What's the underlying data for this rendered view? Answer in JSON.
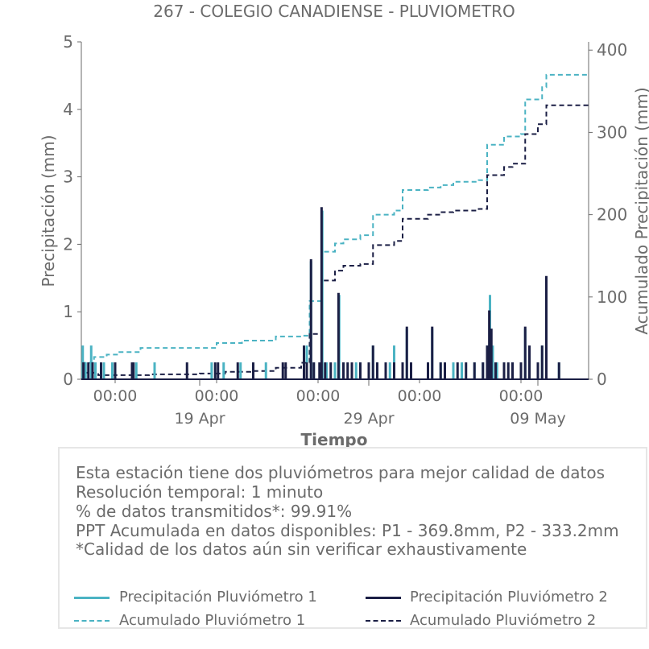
{
  "chart_data": {
    "type": "line",
    "title": "267 - COLEGIO CANADIENSE - PLUVIOMETRO",
    "xlabel": "Tiempo",
    "ylabel": "Precipitación (mm)",
    "ylabel_right": "Acumulado Precipitación (mm)",
    "ylim": [
      0,
      5
    ],
    "ylim_right": [
      0,
      410
    ],
    "yticks": [
      "0",
      "1",
      "2",
      "3",
      "4",
      "5"
    ],
    "yticks_right": [
      "0",
      "100",
      "200",
      "300",
      "400"
    ],
    "xlim": [
      "2025-04-12T00:00",
      "2025-05-12T00:00"
    ],
    "xticks": [
      {
        "t": "2025-04-14T00:00",
        "label": "00:00"
      },
      {
        "t": "2025-04-20T00:00",
        "label": "00:00"
      },
      {
        "t": "2025-04-26T00:00",
        "label": "00:00"
      },
      {
        "t": "2025-05-02T00:00",
        "label": "00:00"
      },
      {
        "t": "2025-05-08T00:00",
        "label": "00:00"
      }
    ],
    "xticks_major": [
      {
        "t": "2025-04-19T00:00",
        "label": "19 Apr"
      },
      {
        "t": "2025-04-29T00:00",
        "label": "29 Apr"
      },
      {
        "t": "2025-05-09T00:00",
        "label": "09 May"
      }
    ],
    "grid": false,
    "colors": {
      "p1": "#4bb3c3",
      "p2": "#1b1f45"
    },
    "series": [
      {
        "name": "Precipitación Pluviómetro 1",
        "axis": "left",
        "style": "spikes",
        "points": [
          [
            "2025-04-12T02:00",
            0.5
          ],
          [
            "2025-04-12T06:00",
            0.25
          ],
          [
            "2025-04-12T14:00",
            0.5
          ],
          [
            "2025-04-12T20:00",
            0.25
          ],
          [
            "2025-04-13T08:00",
            0.25
          ],
          [
            "2025-04-13T20:00",
            0.25
          ],
          [
            "2025-04-15T06:00",
            0.25
          ],
          [
            "2025-04-16T08:00",
            0.25
          ],
          [
            "2025-04-19T17:00",
            0.25
          ],
          [
            "2025-04-20T10:00",
            0.25
          ],
          [
            "2025-04-21T10:00",
            0.25
          ],
          [
            "2025-04-22T22:00",
            0.25
          ],
          [
            "2025-04-25T08:00",
            0.5
          ],
          [
            "2025-04-25T14:00",
            1.75
          ],
          [
            "2025-04-25T18:00",
            0.25
          ],
          [
            "2025-04-26T06:00",
            2.5
          ],
          [
            "2025-04-26T12:00",
            0.25
          ],
          [
            "2025-04-27T00:00",
            0.25
          ],
          [
            "2025-04-27T06:00",
            1.25
          ],
          [
            "2025-04-27T12:00",
            0.25
          ],
          [
            "2025-04-28T06:00",
            0.25
          ],
          [
            "2025-04-28T12:00",
            0.25
          ],
          [
            "2025-04-29T06:00",
            0.5
          ],
          [
            "2025-04-29T12:00",
            0.25
          ],
          [
            "2025-04-30T06:00",
            0.25
          ],
          [
            "2025-04-30T12:00",
            0.5
          ],
          [
            "2025-05-01T00:00",
            0.25
          ],
          [
            "2025-05-01T06:00",
            0.75
          ],
          [
            "2025-05-02T12:00",
            0.25
          ],
          [
            "2025-05-02T18:00",
            0.75
          ],
          [
            "2025-05-03T06:00",
            0.25
          ],
          [
            "2025-05-04T00:00",
            0.25
          ],
          [
            "2025-05-04T12:00",
            0.25
          ],
          [
            "2025-05-05T06:00",
            0.25
          ],
          [
            "2025-05-05T18:00",
            0.25
          ],
          [
            "2025-05-06T00:00",
            0.5
          ],
          [
            "2025-05-06T04:00",
            1.25
          ],
          [
            "2025-05-06T08:00",
            0.5
          ],
          [
            "2025-05-06T14:00",
            0.25
          ],
          [
            "2025-05-07T00:00",
            0.25
          ],
          [
            "2025-05-07T12:00",
            0.25
          ],
          [
            "2025-05-08T06:00",
            0.75
          ],
          [
            "2025-05-08T12:00",
            0.25
          ],
          [
            "2025-05-09T06:00",
            0.5
          ],
          [
            "2025-05-09T12:00",
            1.5
          ],
          [
            "2025-05-10T06:00",
            0.25
          ]
        ]
      },
      {
        "name": "Precipitación Pluviómetro 2",
        "axis": "left",
        "style": "spikes",
        "points": [
          [
            "2025-04-12T03:00",
            0.25
          ],
          [
            "2025-04-12T10:00",
            0.25
          ],
          [
            "2025-04-12T16:00",
            0.25
          ],
          [
            "2025-04-13T04:00",
            0.25
          ],
          [
            "2025-04-14T00:00",
            0.25
          ],
          [
            "2025-04-15T00:00",
            0.25
          ],
          [
            "2025-04-15T02:00",
            0.25
          ],
          [
            "2025-04-18T06:00",
            0.25
          ],
          [
            "2025-04-19T22:00",
            0.25
          ],
          [
            "2025-04-20T02:00",
            0.25
          ],
          [
            "2025-04-21T06:00",
            0.25
          ],
          [
            "2025-04-22T04:00",
            0.25
          ],
          [
            "2025-04-23T22:00",
            0.25
          ],
          [
            "2025-04-24T02:00",
            0.25
          ],
          [
            "2025-04-25T04:00",
            0.5
          ],
          [
            "2025-04-25T08:00",
            0.25
          ],
          [
            "2025-04-25T14:00",
            1.78
          ],
          [
            "2025-04-25T18:00",
            0.25
          ],
          [
            "2025-04-26T02:00",
            0.25
          ],
          [
            "2025-04-26T05:00",
            2.55
          ],
          [
            "2025-04-26T10:00",
            0.25
          ],
          [
            "2025-04-26T18:00",
            0.25
          ],
          [
            "2025-04-27T05:00",
            1.28
          ],
          [
            "2025-04-27T12:00",
            0.25
          ],
          [
            "2025-04-27T18:00",
            0.25
          ],
          [
            "2025-04-28T00:00",
            0.25
          ],
          [
            "2025-04-28T12:00",
            0.25
          ],
          [
            "2025-04-29T00:00",
            0.25
          ],
          [
            "2025-04-29T06:00",
            0.5
          ],
          [
            "2025-04-29T12:00",
            0.25
          ],
          [
            "2025-04-30T00:00",
            0.25
          ],
          [
            "2025-04-30T12:00",
            0.25
          ],
          [
            "2025-05-01T00:00",
            0.25
          ],
          [
            "2025-05-01T06:00",
            0.78
          ],
          [
            "2025-05-01T12:00",
            0.25
          ],
          [
            "2025-05-02T12:00",
            0.25
          ],
          [
            "2025-05-02T18:00",
            0.78
          ],
          [
            "2025-05-03T06:00",
            0.25
          ],
          [
            "2025-05-03T12:00",
            0.25
          ],
          [
            "2025-05-04T06:00",
            0.25
          ],
          [
            "2025-05-04T18:00",
            0.25
          ],
          [
            "2025-05-05T06:00",
            0.25
          ],
          [
            "2025-05-05T18:00",
            0.25
          ],
          [
            "2025-05-06T00:00",
            0.5
          ],
          [
            "2025-05-06T03:00",
            1.02
          ],
          [
            "2025-05-06T06:00",
            0.75
          ],
          [
            "2025-05-06T12:00",
            0.25
          ],
          [
            "2025-05-07T00:00",
            0.25
          ],
          [
            "2025-05-07T06:00",
            0.25
          ],
          [
            "2025-05-07T12:00",
            0.25
          ],
          [
            "2025-05-08T00:00",
            0.25
          ],
          [
            "2025-05-08T06:00",
            0.78
          ],
          [
            "2025-05-08T12:00",
            0.5
          ],
          [
            "2025-05-09T00:00",
            0.25
          ],
          [
            "2025-05-09T06:00",
            0.5
          ],
          [
            "2025-05-09T12:00",
            1.53
          ],
          [
            "2025-05-10T06:00",
            0.25
          ]
        ]
      },
      {
        "name": "Acumulado Pluviómetro 1",
        "axis": "right",
        "style": "dashed-step",
        "points": [
          [
            "2025-04-12T00:00",
            0
          ],
          [
            "2025-04-12T03:00",
            20
          ],
          [
            "2025-04-12T18:00",
            27
          ],
          [
            "2025-04-13T12:00",
            30
          ],
          [
            "2025-04-14T06:00",
            33
          ],
          [
            "2025-04-15T12:00",
            38
          ],
          [
            "2025-04-19T00:00",
            38
          ],
          [
            "2025-04-20T00:00",
            44
          ],
          [
            "2025-04-21T12:00",
            47
          ],
          [
            "2025-04-23T12:00",
            52
          ],
          [
            "2025-04-25T00:00",
            53
          ],
          [
            "2025-04-25T12:00",
            95
          ],
          [
            "2025-04-26T06:00",
            155
          ],
          [
            "2025-04-27T00:00",
            165
          ],
          [
            "2025-04-27T12:00",
            170
          ],
          [
            "2025-04-28T12:00",
            175
          ],
          [
            "2025-04-29T06:00",
            200
          ],
          [
            "2025-04-30T12:00",
            205
          ],
          [
            "2025-05-01T00:00",
            230
          ],
          [
            "2025-05-02T12:00",
            233
          ],
          [
            "2025-05-03T06:00",
            236
          ],
          [
            "2025-05-04T00:00",
            240
          ],
          [
            "2025-05-05T12:00",
            242
          ],
          [
            "2025-05-06T00:00",
            285
          ],
          [
            "2025-05-07T00:00",
            295
          ],
          [
            "2025-05-08T00:00",
            298
          ],
          [
            "2025-05-08T06:00",
            340
          ],
          [
            "2025-05-09T06:00",
            355
          ],
          [
            "2025-05-09T12:00",
            370
          ],
          [
            "2025-05-12T00:00",
            370
          ]
        ]
      },
      {
        "name": "Acumulado Pluviómetro 2",
        "axis": "right",
        "style": "dashed-step",
        "points": [
          [
            "2025-04-12T00:00",
            0
          ],
          [
            "2025-04-12T03:00",
            8
          ],
          [
            "2025-04-13T00:00",
            5
          ],
          [
            "2025-04-16T00:00",
            6
          ],
          [
            "2025-04-19T00:00",
            7
          ],
          [
            "2025-04-20T12:00",
            9
          ],
          [
            "2025-04-22T00:00",
            10
          ],
          [
            "2025-04-23T12:00",
            14
          ],
          [
            "2025-04-25T00:00",
            20
          ],
          [
            "2025-04-25T12:00",
            55
          ],
          [
            "2025-04-26T06:00",
            120
          ],
          [
            "2025-04-27T00:00",
            132
          ],
          [
            "2025-04-27T12:00",
            138
          ],
          [
            "2025-04-28T12:00",
            140
          ],
          [
            "2025-04-29T06:00",
            163
          ],
          [
            "2025-04-30T12:00",
            168
          ],
          [
            "2025-05-01T00:00",
            195
          ],
          [
            "2025-05-02T12:00",
            200
          ],
          [
            "2025-05-03T06:00",
            203
          ],
          [
            "2025-05-04T00:00",
            205
          ],
          [
            "2025-05-05T12:00",
            207
          ],
          [
            "2025-05-06T00:00",
            248
          ],
          [
            "2025-05-07T00:00",
            258
          ],
          [
            "2025-05-07T12:00",
            262
          ],
          [
            "2025-05-08T06:00",
            298
          ],
          [
            "2025-05-09T00:00",
            310
          ],
          [
            "2025-05-09T12:00",
            333
          ],
          [
            "2025-05-12T00:00",
            333
          ]
        ]
      }
    ]
  },
  "info": {
    "line1": "Esta estación tiene dos pluviómetros para mejor calidad de datos",
    "line2": "Resolución temporal: 1 minuto",
    "line3": "% de datos transmitidos*: 99.91%",
    "line4": "PPT Acumulada en datos disponibles: P1 - 369.8mm, P2 - 333.2mm",
    "line5": "*Calidad de los datos aún sin verificar exhaustivamente"
  },
  "legend": {
    "items": [
      {
        "label": "Precipitación Pluviómetro 1",
        "color": "#4bb3c3",
        "dash": "solid"
      },
      {
        "label": "Precipitación Pluviómetro 2",
        "color": "#1b1f45",
        "dash": "solid"
      },
      {
        "label": "Acumulado Pluviómetro 1",
        "color": "#4bb3c3",
        "dash": "dashed"
      },
      {
        "label": "Acumulado Pluviómetro 2",
        "color": "#1b1f45",
        "dash": "dashed"
      }
    ]
  }
}
